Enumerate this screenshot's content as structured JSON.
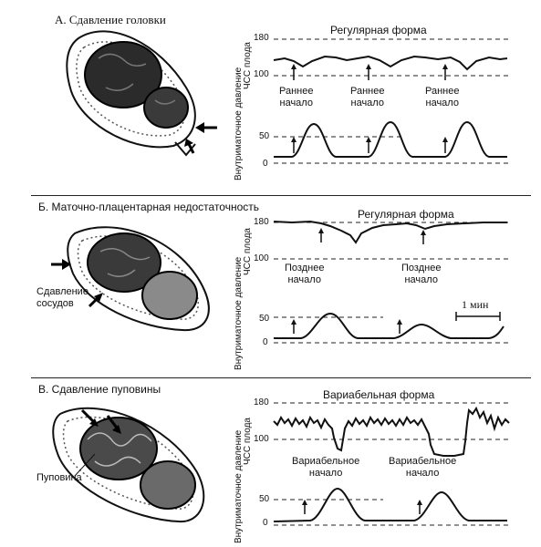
{
  "panels": [
    {
      "title": "А. Сдавление головки",
      "fhr_pattern": "Регулярная форма",
      "onset_labels": [
        "Раннее\nначало",
        "Раннее\nначало",
        "Раннее\nначало"
      ],
      "illustration_labels": [],
      "y_axis_top_label": "ЧСС плода",
      "y_axis_bottom_label": "Внутриматочное давление",
      "fhr_ticks": [
        "180",
        "100"
      ],
      "pressure_ticks": [
        "50",
        "0"
      ]
    },
    {
      "title": "Б. Маточно-плацентарная недостаточность",
      "fhr_pattern": "Регулярная форма",
      "onset_labels": [
        "Позднее\nначало",
        "Позднее\nначало"
      ],
      "illustration_labels": [
        "Сдавление\nсосудов"
      ],
      "scale_label": "1 мин",
      "y_axis_top_label": "ЧСС плода",
      "y_axis_bottom_label": "Внутриматочное давление",
      "fhr_ticks": [
        "180",
        "100"
      ],
      "pressure_ticks": [
        "50",
        "0"
      ]
    },
    {
      "title": "В. Сдавление пуповины",
      "fhr_pattern": "Вариабельная форма",
      "onset_labels": [
        "Вариабельное\nначало",
        "Вариабельное\nначало"
      ],
      "illustration_labels": [
        "Пуповина"
      ],
      "y_axis_top_label": "ЧСС плода",
      "y_axis_bottom_label": "Внутриматочное давление",
      "fhr_ticks": [
        "180",
        "100"
      ],
      "pressure_ticks": [
        "50",
        "0"
      ]
    }
  ]
}
